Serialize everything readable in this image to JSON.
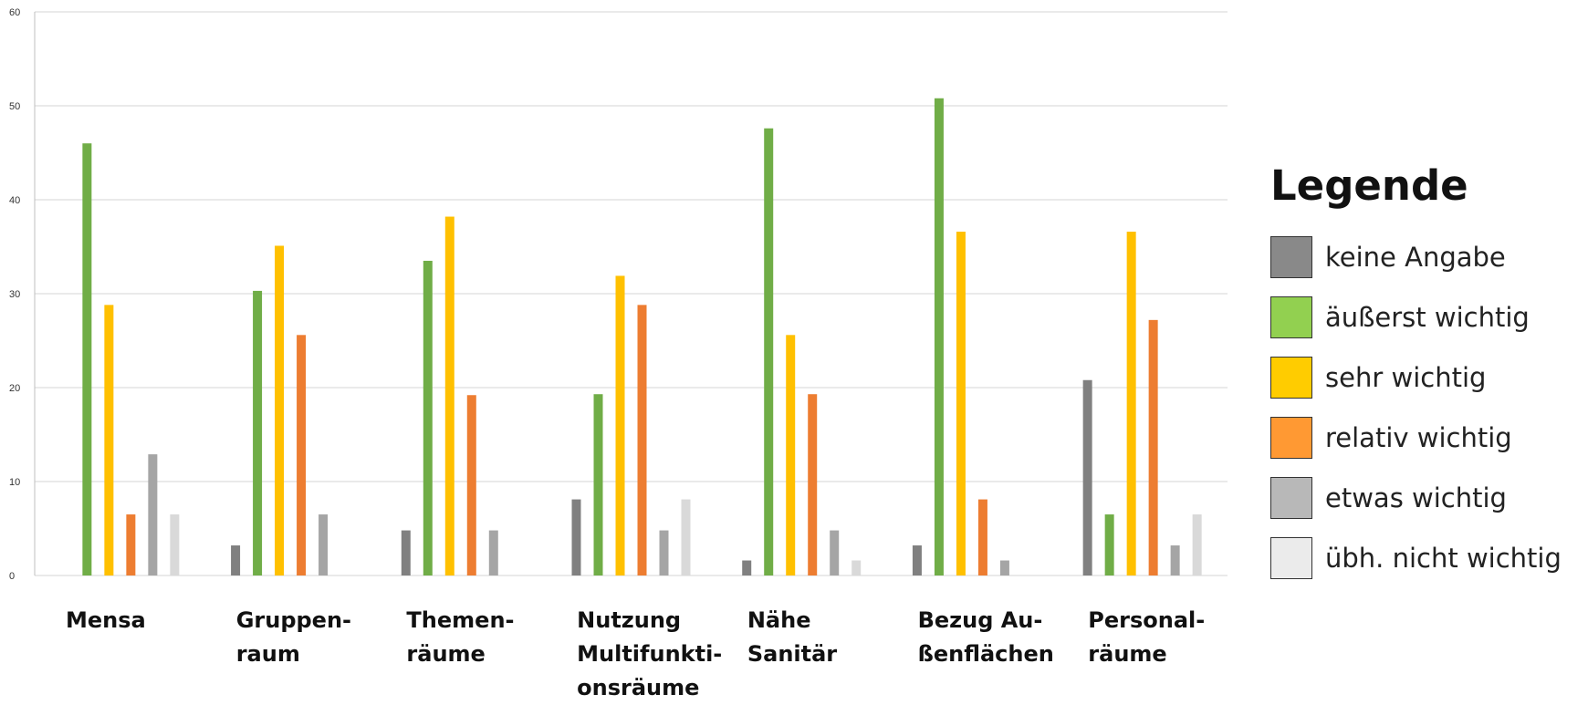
{
  "chart_data": {
    "type": "bar",
    "title": "",
    "xlabel": "",
    "ylabel": "",
    "ylim": [
      0,
      60
    ],
    "yticks": [
      0,
      10,
      20,
      30,
      40,
      50,
      60
    ],
    "grid": true,
    "legend_position": "right",
    "categories": [
      "Mensa",
      "Gruppen-\nraum",
      "Themen-\nräume",
      "Nutzung\nMultifunkti-\nonsräume",
      "Nähe\nSanitär",
      "Bezug Au-\nßenflächen",
      "Personal-\nräume"
    ],
    "series": [
      {
        "name": "keine Angabe",
        "color": "#808080",
        "values": [
          0,
          3.2,
          4.8,
          8.1,
          1.6,
          3.2,
          20.8
        ]
      },
      {
        "name": "äußerst wichtig",
        "color": "#70AD47",
        "values": [
          46,
          30.3,
          33.5,
          19.3,
          47.6,
          50.8,
          6.5
        ]
      },
      {
        "name": "sehr wichtig",
        "color": "#FFC000",
        "values": [
          28.8,
          35.1,
          38.2,
          31.9,
          25.6,
          36.6,
          36.6
        ]
      },
      {
        "name": "relativ wichtig",
        "color": "#ED7D31",
        "values": [
          6.5,
          25.6,
          19.2,
          28.8,
          19.3,
          8.1,
          27.2
        ]
      },
      {
        "name": "etwas wichtig",
        "color": "#A5A5A5",
        "values": [
          12.9,
          6.5,
          4.8,
          4.8,
          4.8,
          1.6,
          3.2
        ]
      },
      {
        "name": "übh. nicht wichtig",
        "color": "#D9D9D9",
        "values": [
          6.5,
          0,
          0,
          8.1,
          1.6,
          0,
          6.5
        ]
      }
    ]
  },
  "legend": {
    "title": "Legende",
    "items": [
      {
        "label": "keine Angabe",
        "color": "#898989"
      },
      {
        "label": "äußerst wichtig",
        "color": "#92D050"
      },
      {
        "label": "sehr wichtig",
        "color": "#FFCC00"
      },
      {
        "label": "relativ wichtig",
        "color": "#FF9933"
      },
      {
        "label": "etwas wichtig",
        "color": "#B8B8B8"
      },
      {
        "label": "übh. nicht wichtig",
        "color": "#EBEBEB"
      }
    ]
  }
}
